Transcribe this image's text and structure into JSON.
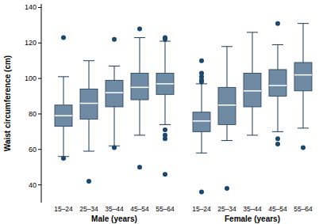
{
  "chart_data": {
    "type": "box",
    "y_label": "Waist circumference (cm)",
    "categories": [
      "15–24",
      "25–34",
      "35–44",
      "45–54",
      "55–64"
    ],
    "ylim": [
      30,
      142
    ],
    "yticks": [
      40,
      60,
      80,
      100,
      120,
      140
    ],
    "grid": false,
    "series": [
      {
        "name": "Male (years)",
        "color": "#6e8ba3",
        "min": [
          56,
          59,
          62,
          68,
          74
        ],
        "q1": [
          73,
          77,
          84,
          88,
          91
        ],
        "median": [
          79,
          86,
          92,
          95,
          97
        ],
        "q3": [
          85,
          94,
          99,
          103,
          103
        ],
        "max": [
          101,
          110,
          107,
          123,
          121
        ],
        "outliers": [
          [
            123,
            55
          ],
          [
            42
          ],
          [
            122,
            61
          ],
          [
            128,
            50
          ],
          [
            123,
            122,
            71,
            68,
            66,
            46
          ]
        ]
      },
      {
        "name": "Female (years)",
        "color": "#6e8ba3",
        "min": [
          58,
          65,
          68,
          70,
          72
        ],
        "q1": [
          70,
          74,
          84,
          90,
          93
        ],
        "median": [
          76,
          85,
          93,
          96,
          102
        ],
        "q3": [
          81,
          95,
          103,
          105,
          109
        ],
        "max": [
          97,
          118,
          126,
          119,
          131
        ],
        "outliers": [
          [
            110,
            103,
            101,
            99,
            98,
            36
          ],
          [
            38
          ],
          [],
          [
            131,
            66,
            63
          ],
          [
            61
          ]
        ]
      }
    ]
  }
}
